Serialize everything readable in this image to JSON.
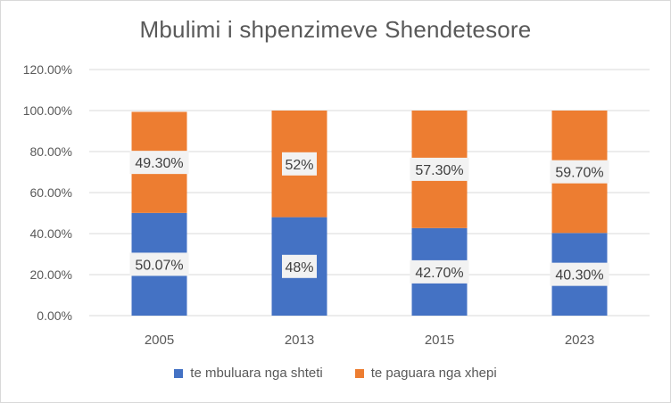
{
  "chart_data": {
    "type": "bar",
    "stacked": true,
    "title": "Mbulimi i shpenzimeve Shendetesore",
    "categories": [
      "2005",
      "2013",
      "2015",
      "2023"
    ],
    "series": [
      {
        "name": "te mbuluara nga shteti",
        "color": "#4472c4",
        "values": [
          50.07,
          48,
          42.7,
          40.3
        ],
        "labels": [
          "50.07%",
          "48%",
          "42.70%",
          "40.30%"
        ]
      },
      {
        "name": "te paguara nga xhepi",
        "color": "#ed7d31",
        "values": [
          49.3,
          52,
          57.3,
          59.7
        ],
        "labels": [
          "49.30%",
          "52%",
          "57.30%",
          "59.70%"
        ]
      }
    ],
    "ylim": [
      0,
      120
    ],
    "yticks": [
      "0.00%",
      "20.00%",
      "40.00%",
      "60.00%",
      "80.00%",
      "100.00%",
      "120.00%"
    ],
    "grid": true,
    "legend_position": "bottom"
  }
}
